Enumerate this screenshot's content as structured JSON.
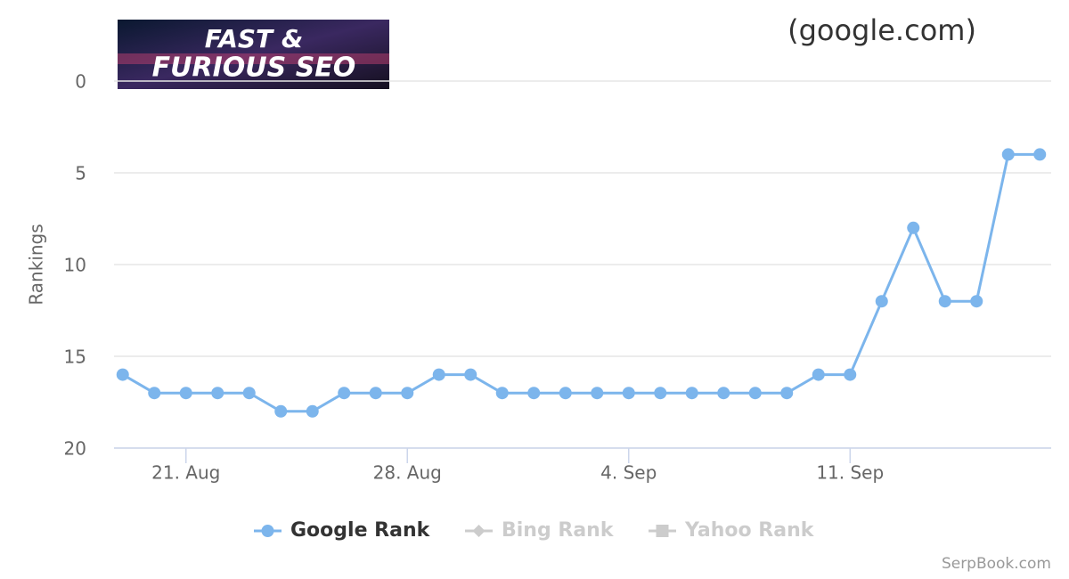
{
  "chart_data": {
    "type": "line",
    "subtitle": "(google.com)",
    "logo_lines": [
      "FAST &",
      "FURIOUS SEO"
    ],
    "y_label": "Rankings",
    "credits": "SerpBook.com",
    "categories": [
      null,
      null,
      "21. Aug",
      null,
      null,
      null,
      null,
      null,
      null,
      "28. Aug",
      null,
      null,
      null,
      null,
      null,
      null,
      "4. Sep",
      null,
      null,
      null,
      null,
      null,
      null,
      "11. Sep",
      null,
      null,
      null,
      null,
      null,
      null
    ],
    "series": [
      {
        "name": "Google Rank",
        "color": "#7cb5ec",
        "marker": "circle",
        "visible": true,
        "values": [
          16,
          17,
          17,
          17,
          17,
          18,
          18,
          17,
          17,
          17,
          16,
          16,
          17,
          17,
          17,
          17,
          17,
          17,
          17,
          17,
          17,
          17,
          16,
          16,
          12,
          8,
          12,
          12,
          4,
          4
        ]
      },
      {
        "name": "Bing Rank",
        "color": "#cccccc",
        "marker": "diamond",
        "visible": false
      },
      {
        "name": "Yahoo Rank",
        "color": "#cccccc",
        "marker": "square",
        "visible": false
      }
    ],
    "ylim": [
      0,
      20
    ],
    "y_reversed": true,
    "yticks": [
      0,
      5,
      10,
      15,
      20
    ],
    "grid": true,
    "legend": "bottom"
  }
}
